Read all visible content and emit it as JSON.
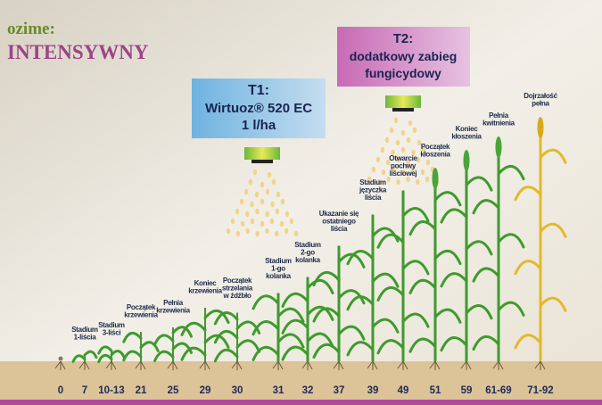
{
  "header": {
    "season": "ozime:",
    "program": "INTENSYWNY"
  },
  "treatments": [
    {
      "title": "T1:",
      "lines": [
        "Wirtuoz® 520 EC",
        "1 l/ha"
      ]
    },
    {
      "title": "T2:",
      "lines": [
        "dodatkowy zabieg",
        "fungicydowy"
      ]
    }
  ],
  "stages": [
    {
      "code": "0",
      "lines": []
    },
    {
      "code": "7",
      "lines": [
        "Stadium",
        "1-liścia"
      ]
    },
    {
      "code": "10-13",
      "lines": [
        "Stadium",
        "3-liści"
      ]
    },
    {
      "code": "21",
      "lines": [
        "Początek",
        "krzewienia"
      ]
    },
    {
      "code": "25",
      "lines": [
        "Pełnia",
        "krzewienia"
      ]
    },
    {
      "code": "29",
      "lines": [
        "Koniec",
        "krzewienia"
      ]
    },
    {
      "code": "30",
      "lines": [
        "Początek",
        "strzelania",
        "w źdźbło"
      ]
    },
    {
      "code": "31",
      "lines": [
        "Stadium",
        "1-go",
        "kolanka"
      ]
    },
    {
      "code": "32",
      "lines": [
        "Stadium",
        "2-go",
        "kolanka"
      ]
    },
    {
      "code": "37",
      "lines": [
        "Ukazanie się",
        "ostatniego",
        "liścia"
      ]
    },
    {
      "code": "39",
      "lines": [
        "Stadium",
        "języczka",
        "liścia"
      ]
    },
    {
      "code": "49",
      "lines": [
        "Otwarcie",
        "pochwy",
        "liściowej"
      ]
    },
    {
      "code": "51",
      "lines": [
        "Początek",
        "kłoszenia"
      ]
    },
    {
      "code": "59",
      "lines": [
        "Koniec",
        "kłoszenia"
      ]
    },
    {
      "code": "61-69",
      "lines": [
        "Pełnia",
        "kwitnienia"
      ]
    },
    {
      "code": "71-92",
      "lines": [
        "Dojrzałość",
        "pełna"
      ]
    }
  ]
}
